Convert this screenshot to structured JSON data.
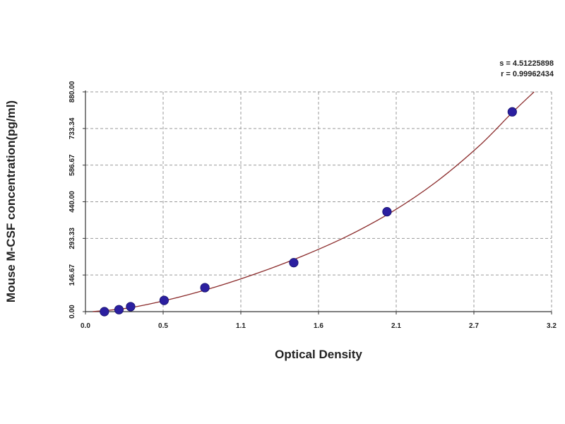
{
  "chart_data": {
    "type": "scatter",
    "title": "",
    "xlabel": "Optical Density",
    "ylabel": "Mouse M-CSF concentration(pg/ml)",
    "xlim": [
      0,
      3.2
    ],
    "ylim": [
      0,
      880
    ],
    "x_ticks": [
      "0.0",
      "0.5",
      "1.1",
      "1.6",
      "2.1",
      "2.7",
      "3.2"
    ],
    "y_ticks": [
      "0.00",
      "146.67",
      "293.33",
      "440.00",
      "586.67",
      "733.34",
      "880.00"
    ],
    "grid": true,
    "points": {
      "x": [
        0.13,
        0.23,
        0.31,
        0.54,
        0.82,
        1.43,
        2.07,
        2.93
      ],
      "y": [
        0,
        8,
        20,
        45,
        96,
        196,
        400,
        800
      ]
    },
    "fit_curve": {
      "x": [
        0.05,
        0.3,
        0.6,
        0.9,
        1.2,
        1.5,
        1.8,
        2.1,
        2.4,
        2.7,
        2.93,
        3.08
      ],
      "y": [
        0,
        15,
        52,
        100,
        158,
        225,
        303,
        398,
        516,
        662,
        797,
        880
      ]
    },
    "annotations": {
      "s": "s = 4.51225898",
      "r": "r = 0.99962434"
    },
    "colors": {
      "curve": "#8b2b2b",
      "marker": "#2b1fa0",
      "grid": "#9a9a9a"
    }
  }
}
